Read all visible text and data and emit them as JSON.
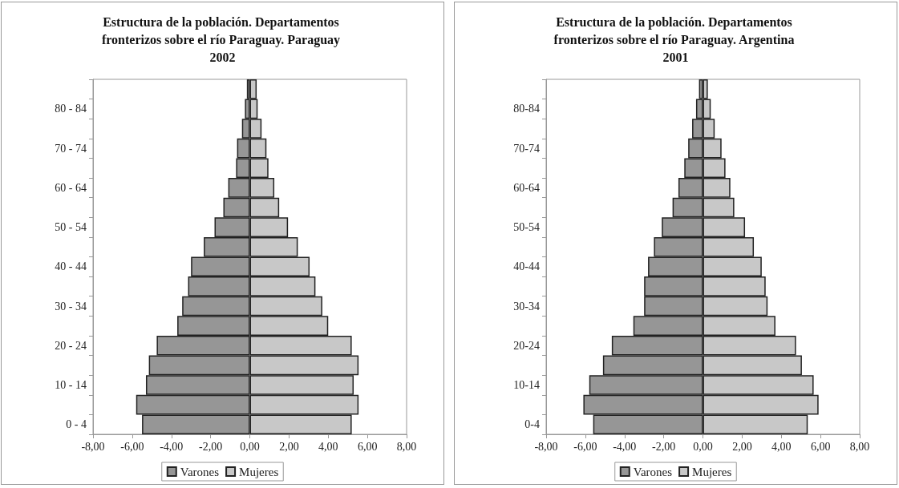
{
  "chart_data": [
    {
      "type": "bar",
      "orientation": "horizontal",
      "stacked": true,
      "title": "Estructura de la población. Departamentos fronterizos sobre el río Paraguay. Paraguay 2002",
      "categories": [
        null,
        "80 - 84",
        null,
        "70 - 74",
        null,
        "60 - 64",
        null,
        "50 - 54",
        null,
        "40 - 44",
        null,
        "30 - 34",
        null,
        "20 - 24",
        null,
        "10 - 14",
        null,
        "0 - 4"
      ],
      "series": [
        {
          "name": "Varones",
          "color": "#969696",
          "values": [
            -0.15,
            -0.25,
            -0.4,
            -0.65,
            -0.7,
            -1.1,
            -1.35,
            -1.8,
            -2.35,
            -3.0,
            -3.15,
            -3.45,
            -3.7,
            -4.75,
            -5.15,
            -5.3,
            -5.8,
            -5.5
          ]
        },
        {
          "name": "Mujeres",
          "color": "#c8c8c8",
          "values": [
            0.35,
            0.4,
            0.6,
            0.85,
            0.95,
            1.25,
            1.5,
            1.95,
            2.45,
            3.05,
            3.35,
            3.7,
            4.0,
            5.2,
            5.55,
            5.3,
            5.55,
            5.2
          ]
        }
      ],
      "xlim": [
        -8,
        8
      ],
      "xticks": [
        {
          "value": -8,
          "label": "-8,00"
        },
        {
          "value": -6,
          "label": "-6,00"
        },
        {
          "value": -4,
          "label": "-4,00"
        },
        {
          "value": -2,
          "label": "-2,00"
        },
        {
          "value": 0,
          "label": "0,00"
        },
        {
          "value": 2,
          "label": "2,00"
        },
        {
          "value": 4,
          "label": "4,00"
        },
        {
          "value": 6,
          "label": "6,00"
        },
        {
          "value": 8,
          "label": "8,00"
        }
      ],
      "legend": "bottom",
      "grid": false
    },
    {
      "type": "bar",
      "orientation": "horizontal",
      "stacked": true,
      "title": "Estructura de la población. Departamentos fronterizos sobre el río Paraguay. Argentina 2001",
      "categories": [
        null,
        "80-84",
        null,
        "70-74",
        null,
        "60-64",
        null,
        "50-54",
        null,
        "40-44",
        null,
        "30-34",
        null,
        "20-24",
        null,
        "10-14",
        null,
        "0-4"
      ],
      "series": [
        {
          "name": "Varones",
          "color": "#969696",
          "values": [
            -0.2,
            -0.35,
            -0.55,
            -0.75,
            -0.95,
            -1.25,
            -1.55,
            -2.1,
            -2.5,
            -2.8,
            -3.0,
            -3.0,
            -3.55,
            -4.65,
            -5.1,
            -5.8,
            -6.1,
            -5.6
          ]
        },
        {
          "name": "Mujeres",
          "color": "#c8c8c8",
          "values": [
            0.25,
            0.4,
            0.6,
            0.95,
            1.15,
            1.4,
            1.6,
            2.15,
            2.6,
            3.0,
            3.2,
            3.3,
            3.7,
            4.75,
            5.05,
            5.65,
            5.9,
            5.35
          ]
        }
      ],
      "xlim": [
        -8,
        8
      ],
      "xticks": [
        {
          "value": -8,
          "label": "-8,00"
        },
        {
          "value": -6,
          "label": "-6,00"
        },
        {
          "value": -4,
          "label": "-4,00"
        },
        {
          "value": -2,
          "label": "-2,00"
        },
        {
          "value": 0,
          "label": "0,00"
        },
        {
          "value": 2,
          "label": "2,00"
        },
        {
          "value": 4,
          "label": "4,00"
        },
        {
          "value": 6,
          "label": "6,00"
        },
        {
          "value": 8,
          "label": "8,00"
        }
      ],
      "legend": "bottom",
      "grid": false
    }
  ]
}
